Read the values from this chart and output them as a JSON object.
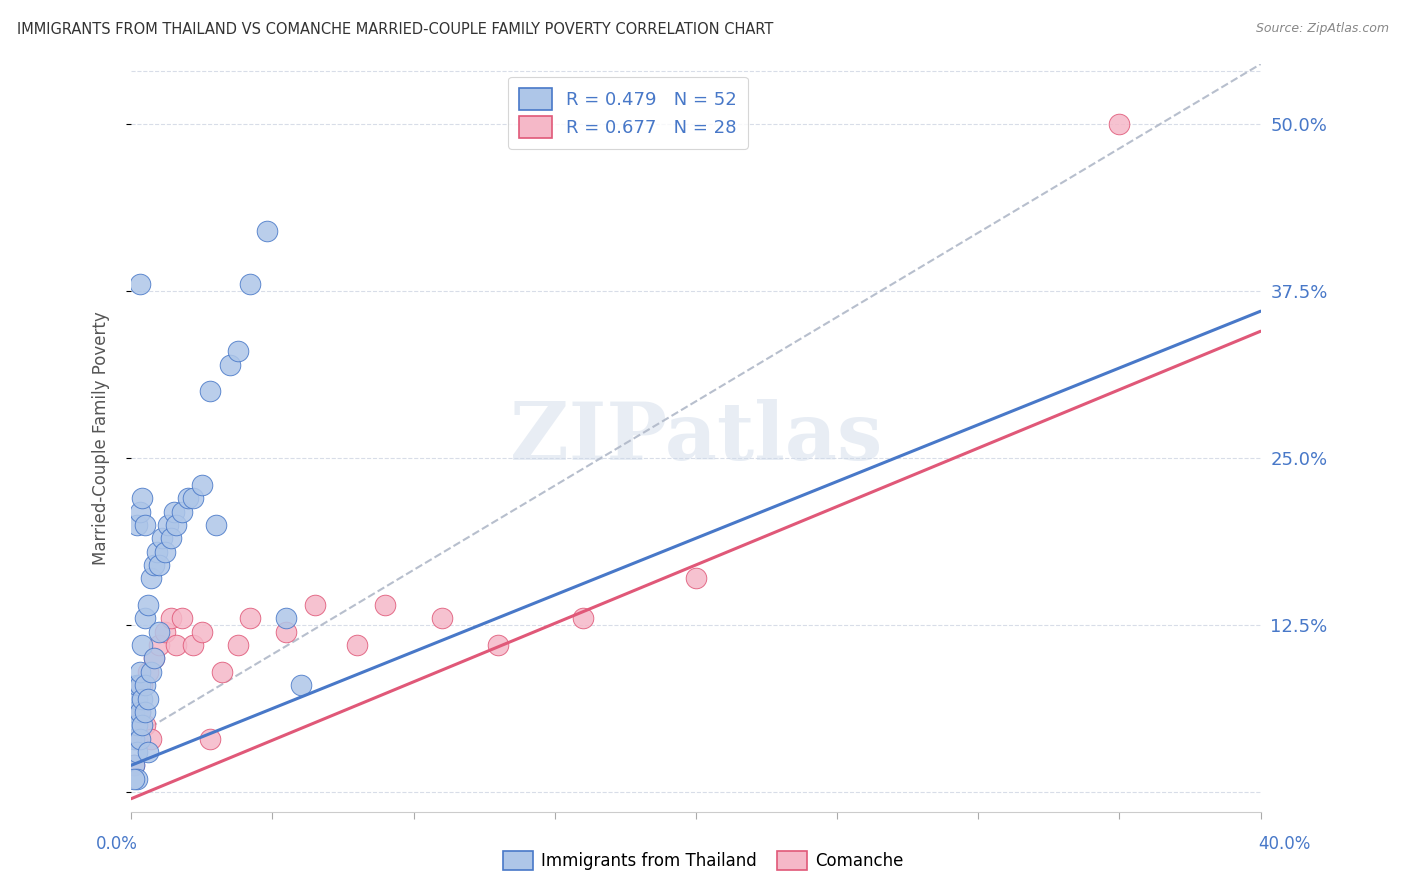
{
  "title": "IMMIGRANTS FROM THAILAND VS COMANCHE MARRIED-COUPLE FAMILY POVERTY CORRELATION CHART",
  "source": "Source: ZipAtlas.com",
  "ylabel": "Married-Couple Family Poverty",
  "xlim": [
    0.0,
    0.4
  ],
  "ylim": [
    -0.015,
    0.545
  ],
  "right_yticks": [
    0.0,
    0.125,
    0.25,
    0.375,
    0.5
  ],
  "right_yticklabels": [
    "",
    "12.5%",
    "25.0%",
    "37.5%",
    "50.0%"
  ],
  "series1_color": "#aec6e8",
  "series2_color": "#f5b8c8",
  "line1_color": "#4878c8",
  "line2_color": "#e05878",
  "dashed_color": "#b0b8c8",
  "watermark": "ZIPatlas",
  "thailand_x": [
    0.001,
    0.001,
    0.001,
    0.002,
    0.002,
    0.002,
    0.002,
    0.003,
    0.003,
    0.003,
    0.003,
    0.004,
    0.004,
    0.004,
    0.005,
    0.005,
    0.005,
    0.006,
    0.006,
    0.007,
    0.007,
    0.008,
    0.008,
    0.009,
    0.01,
    0.01,
    0.011,
    0.012,
    0.013,
    0.014,
    0.015,
    0.016,
    0.018,
    0.02,
    0.022,
    0.025,
    0.028,
    0.03,
    0.035,
    0.038,
    0.042,
    0.048,
    0.055,
    0.06,
    0.002,
    0.003,
    0.004,
    0.005,
    0.003,
    0.002,
    0.001,
    0.006
  ],
  "thailand_y": [
    0.02,
    0.04,
    0.06,
    0.03,
    0.05,
    0.07,
    0.08,
    0.04,
    0.06,
    0.08,
    0.09,
    0.05,
    0.07,
    0.11,
    0.06,
    0.08,
    0.13,
    0.07,
    0.14,
    0.09,
    0.16,
    0.1,
    0.17,
    0.18,
    0.12,
    0.17,
    0.19,
    0.18,
    0.2,
    0.19,
    0.21,
    0.2,
    0.21,
    0.22,
    0.22,
    0.23,
    0.3,
    0.2,
    0.32,
    0.33,
    0.38,
    0.42,
    0.13,
    0.08,
    0.2,
    0.21,
    0.22,
    0.2,
    0.38,
    0.01,
    0.01,
    0.03
  ],
  "comanche_x": [
    0.001,
    0.002,
    0.003,
    0.004,
    0.005,
    0.006,
    0.007,
    0.008,
    0.01,
    0.012,
    0.014,
    0.016,
    0.018,
    0.022,
    0.025,
    0.028,
    0.032,
    0.038,
    0.042,
    0.055,
    0.065,
    0.08,
    0.09,
    0.11,
    0.13,
    0.16,
    0.2,
    0.35
  ],
  "comanche_y": [
    0.02,
    0.04,
    0.06,
    0.08,
    0.05,
    0.09,
    0.04,
    0.1,
    0.11,
    0.12,
    0.13,
    0.11,
    0.13,
    0.11,
    0.12,
    0.04,
    0.09,
    0.11,
    0.13,
    0.12,
    0.14,
    0.11,
    0.14,
    0.13,
    0.11,
    0.13,
    0.16,
    0.5
  ],
  "blue_line_x0": 0.0,
  "blue_line_y0": 0.02,
  "blue_line_x1": 0.4,
  "blue_line_y1": 0.36,
  "pink_line_x0": 0.0,
  "pink_line_y0": -0.005,
  "pink_line_x1": 0.4,
  "pink_line_y1": 0.345,
  "dash_line_x0": 0.0,
  "dash_line_y0": 0.04,
  "dash_line_x1": 0.4,
  "dash_line_y1": 0.545
}
